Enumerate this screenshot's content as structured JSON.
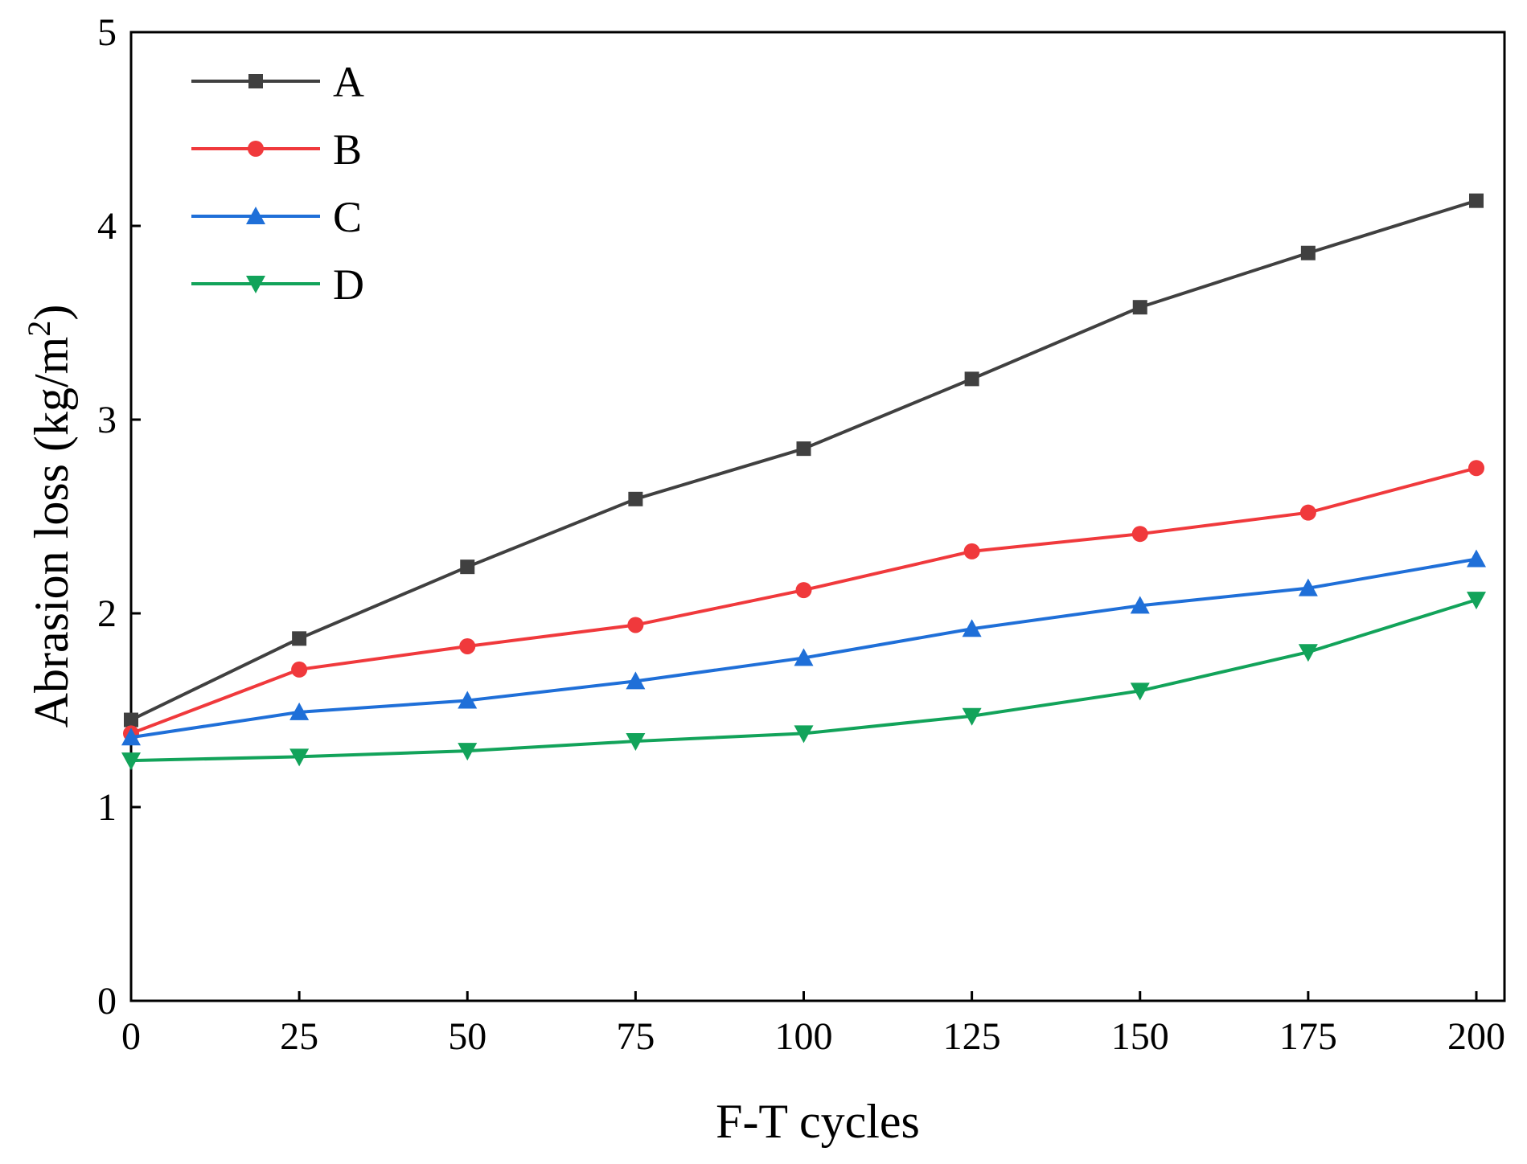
{
  "chart_data": {
    "type": "line",
    "title": "",
    "xlabel": "F-T cycles",
    "ylabel": {
      "prefix": "Abrasion loss (kg/m",
      "superscript": "2",
      "suffix": ")"
    },
    "x": [
      0,
      25,
      50,
      75,
      100,
      125,
      150,
      175,
      200
    ],
    "xlim": [
      0,
      200
    ],
    "ylim": [
      0,
      5
    ],
    "xticks": [
      "0",
      "25",
      "50",
      "75",
      "100",
      "125",
      "150",
      "175",
      "200"
    ],
    "yticks": [
      "0",
      "1",
      "2",
      "3",
      "4",
      "5"
    ],
    "grid": false,
    "legend_position": "top-left",
    "series": [
      {
        "name": "A",
        "color": "#404040",
        "marker": "square",
        "values": [
          1.45,
          1.87,
          2.24,
          2.59,
          2.85,
          3.21,
          3.58,
          3.86,
          4.13
        ]
      },
      {
        "name": "B",
        "color": "#f0393c",
        "marker": "circle",
        "values": [
          1.38,
          1.71,
          1.83,
          1.94,
          2.12,
          2.32,
          2.41,
          2.52,
          2.75
        ]
      },
      {
        "name": "C",
        "color": "#1f6fd8",
        "marker": "triangle-up",
        "values": [
          1.36,
          1.49,
          1.55,
          1.65,
          1.77,
          1.92,
          2.04,
          2.13,
          2.28
        ]
      },
      {
        "name": "D",
        "color": "#12a35a",
        "marker": "triangle-down",
        "values": [
          1.24,
          1.26,
          1.29,
          1.34,
          1.38,
          1.47,
          1.6,
          1.8,
          2.07
        ]
      }
    ]
  }
}
